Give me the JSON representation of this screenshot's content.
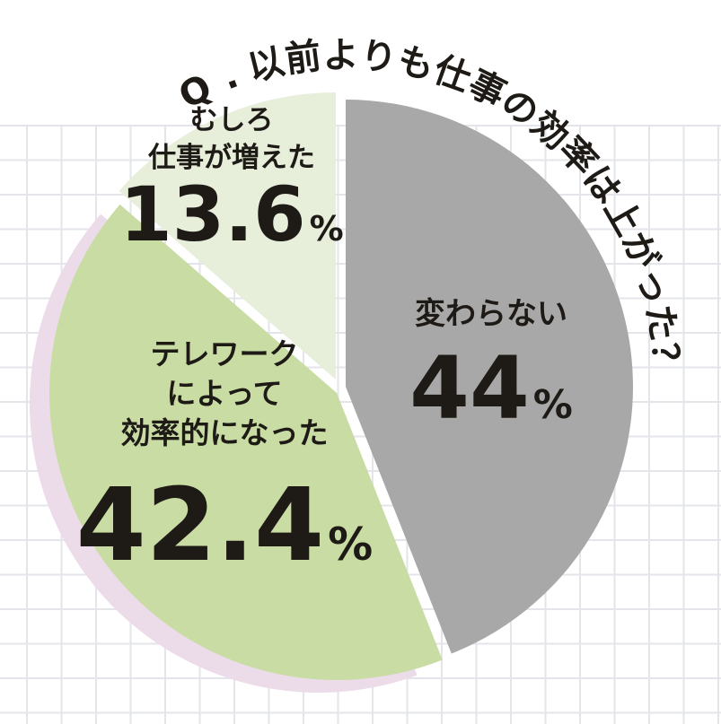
{
  "chart_data": {
    "type": "pie",
    "title": "Q.以前よりも仕事の効率は上がった？",
    "slices": [
      {
        "label_lines": [
          "変わらない"
        ],
        "value": 44,
        "value_text": "44",
        "unit": "%",
        "color": "#a9a8a8"
      },
      {
        "label_lines": [
          "テレワーク",
          "によって",
          "効率的になった"
        ],
        "value": 42.4,
        "value_text": "42.4",
        "unit": "%",
        "color": "#c8dca4"
      },
      {
        "label_lines": [
          "むしろ",
          "仕事が増えた"
        ],
        "value": 13.6,
        "value_text": "13.6",
        "unit": "%",
        "color": "#e7eeda"
      }
    ]
  },
  "colors": {
    "grid_line": "#e3e5ea",
    "shadow": "#ecdbe9",
    "text": "#1e1a16"
  }
}
